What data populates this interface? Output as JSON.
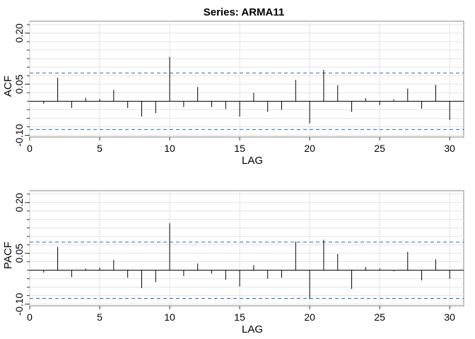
{
  "title": "Series:  ARMA11",
  "chart_data": [
    {
      "type": "bar",
      "panel": "acf",
      "xlabel": "LAG",
      "ylabel": "ACF",
      "xlim": [
        0,
        31
      ],
      "ylim": [
        -0.105,
        0.235
      ],
      "xticks": [
        0,
        5,
        10,
        15,
        20,
        25,
        30
      ],
      "yticks": [
        -0.1,
        0.05,
        0.2
      ],
      "ytick_labels": [
        "-0.10",
        "0.05",
        "0.20"
      ],
      "ci": 0.083,
      "grid": true,
      "x": [
        1,
        2,
        3,
        4,
        5,
        6,
        7,
        8,
        9,
        10,
        11,
        12,
        13,
        14,
        15,
        16,
        17,
        18,
        19,
        20,
        21,
        22,
        23,
        24,
        25,
        26,
        27,
        28,
        29,
        30
      ],
      "values": [
        -0.007,
        0.069,
        -0.02,
        0.01,
        0.007,
        0.033,
        -0.02,
        -0.045,
        -0.035,
        0.13,
        -0.017,
        0.042,
        -0.017,
        -0.023,
        -0.045,
        0.025,
        -0.031,
        -0.025,
        0.063,
        -0.065,
        0.092,
        0.047,
        -0.031,
        0.009,
        -0.011,
        0.005,
        0.037,
        -0.022,
        0.048,
        -0.055
      ]
    },
    {
      "type": "bar",
      "panel": "pacf",
      "xlabel": "LAG",
      "ylabel": "PACF",
      "xlim": [
        0,
        31
      ],
      "ylim": [
        -0.105,
        0.235
      ],
      "xticks": [
        0,
        5,
        10,
        15,
        20,
        25,
        30
      ],
      "yticks": [
        -0.1,
        0.05,
        0.2
      ],
      "ytick_labels": [
        "-0.10",
        "0.05",
        "0.20"
      ],
      "ci": 0.083,
      "grid": true,
      "x": [
        1,
        2,
        3,
        4,
        5,
        6,
        7,
        8,
        9,
        10,
        11,
        12,
        13,
        14,
        15,
        16,
        17,
        18,
        19,
        20,
        21,
        22,
        23,
        24,
        25,
        26,
        27,
        28,
        29,
        30
      ],
      "values": [
        -0.007,
        0.069,
        -0.02,
        0.005,
        0.008,
        0.03,
        -0.022,
        -0.053,
        -0.035,
        0.139,
        -0.017,
        0.02,
        -0.01,
        -0.028,
        -0.048,
        0.015,
        -0.025,
        -0.022,
        0.085,
        -0.085,
        0.09,
        0.048,
        -0.055,
        0.01,
        0.005,
        -0.003,
        0.054,
        -0.03,
        0.032,
        -0.025
      ]
    }
  ]
}
